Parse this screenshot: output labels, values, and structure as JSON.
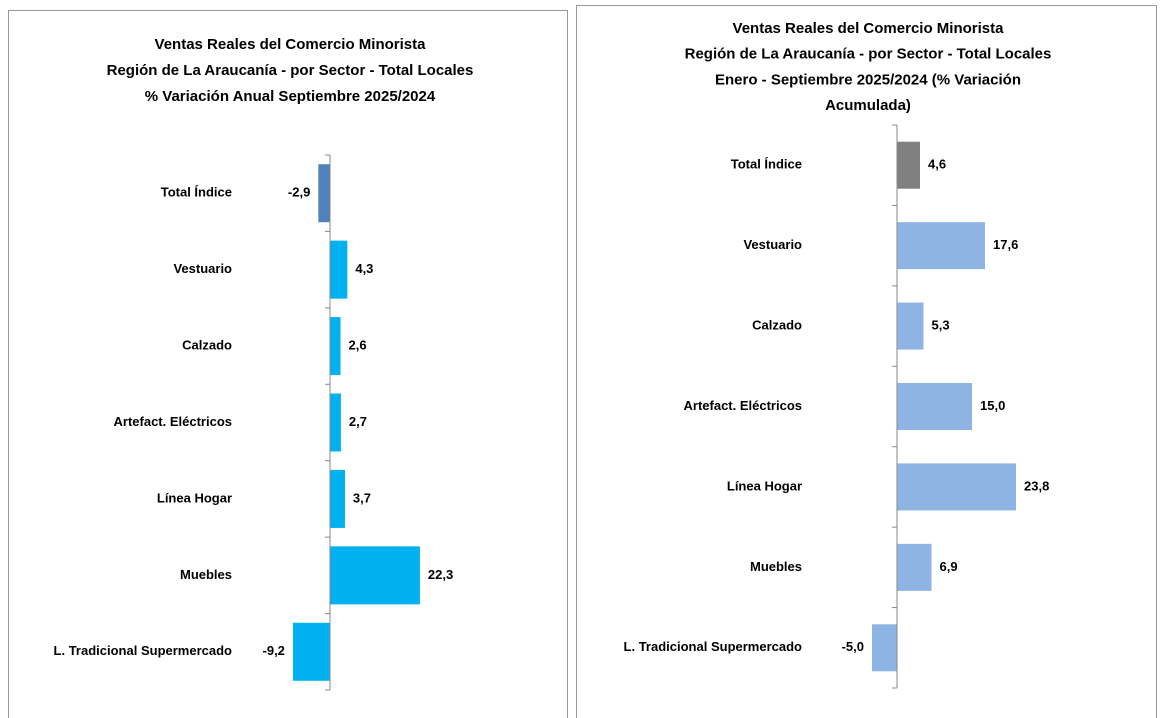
{
  "chart_data": [
    {
      "type": "hbar",
      "title": [
        "Ventas Reales del Comercio Minorista",
        "Región de La Araucanía - por Sector - Total Locales",
        "% Variación Anual Septiembre 2025/2024"
      ],
      "categories": [
        "Total Índice",
        "Vestuario",
        "Calzado",
        "Artefact. Eléctricos",
        "Línea Hogar",
        "Muebles",
        "L. Tradicional Supermercado"
      ],
      "values": [
        -2.9,
        4.3,
        2.6,
        2.7,
        3.7,
        22.3,
        -9.2
      ],
      "value_labels": [
        "-2,9",
        "4,3",
        "2,6",
        "2,7",
        "3,7",
        "22,3",
        "-9,2"
      ],
      "colors": [
        "#4f81bd",
        "#00b0f0",
        "#00b0f0",
        "#00b0f0",
        "#00b0f0",
        "#00b0f0",
        "#00b0f0"
      ],
      "xlim": [
        -10,
        25
      ]
    },
    {
      "type": "hbar",
      "title": [
        "Ventas Reales del Comercio Minorista",
        "Región de La Araucanía - por Sector - Total Locales",
        "Enero - Septiembre 2025/2024 (% Variación",
        "Acumulada)"
      ],
      "categories": [
        "Total Índice",
        "Vestuario",
        "Calzado",
        "Artefact. Eléctricos",
        "Línea Hogar",
        "Muebles",
        "L. Tradicional Supermercado"
      ],
      "values": [
        4.6,
        17.6,
        5.3,
        15.0,
        23.8,
        6.9,
        -5.0
      ],
      "value_labels": [
        "4,6",
        "17,6",
        "5,3",
        "15,0",
        "23,8",
        "6,9",
        "-5,0"
      ],
      "colors": [
        "#808080",
        "#8db4e2",
        "#8db4e2",
        "#8db4e2",
        "#8db4e2",
        "#8db4e2",
        "#8db4e2"
      ],
      "xlim": [
        -5,
        25
      ]
    }
  ]
}
